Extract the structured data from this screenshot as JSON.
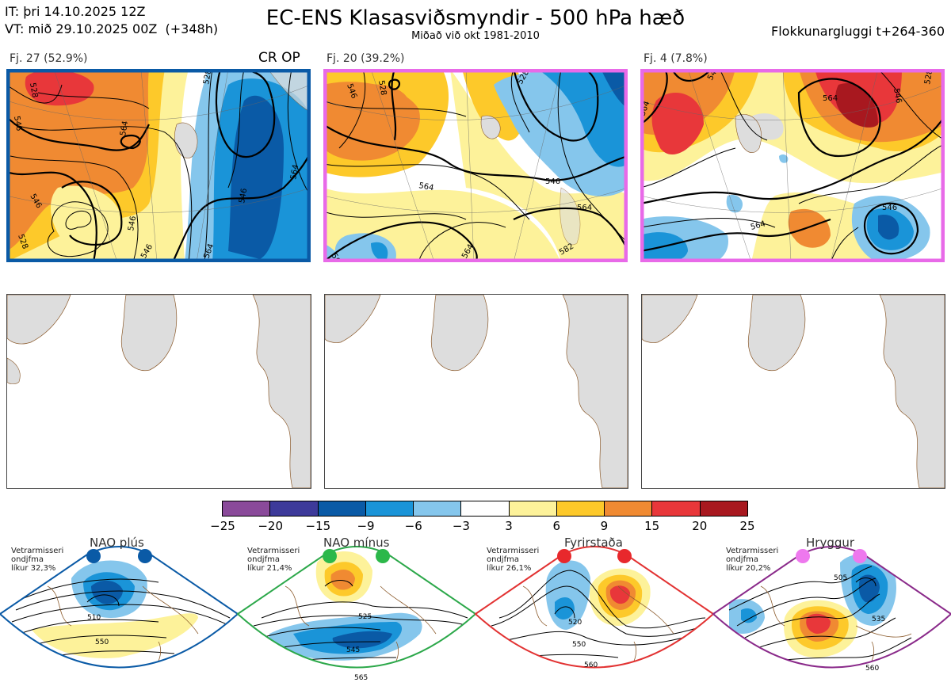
{
  "header": {
    "init_time": "IT: þri 14.10.2025 12Z",
    "valid_time": "VT: mið 29.10.2025 00Z  (+348h)",
    "title": "EC-ENS Klasasviðsmyndir - 500 hPa hæð",
    "subtitle": "Miðað við okt 1981-2010",
    "cluster_window": "Flokkunargluggi t+264-360"
  },
  "clusters": [
    {
      "label": "Fj. 27 (52.9%)",
      "members": 27,
      "percent": 52.9,
      "border_color": "#0a5aa6",
      "badge": "CR OP",
      "contour_labels": [
        "528",
        "546",
        "564",
        "546",
        "528",
        "546",
        "528",
        "546",
        "564",
        "546",
        "564"
      ]
    },
    {
      "label": "Fj. 20 (39.2%)",
      "members": 20,
      "percent": 39.2,
      "border_color": "#e86ae8",
      "badge": "",
      "contour_labels": [
        "546",
        "528",
        "528",
        "546",
        "564",
        "564",
        "546",
        "564",
        "582",
        "564"
      ]
    },
    {
      "label": "Fj. 4 (7.8%)",
      "members": 4,
      "percent": 7.8,
      "border_color": "#e86ae8",
      "badge": "",
      "contour_labels": [
        "546",
        "564",
        "546",
        "528",
        "564",
        "546",
        "564"
      ]
    }
  ],
  "colorbar": {
    "ticks": [
      "−25",
      "−20",
      "−15",
      "−9",
      "−6",
      "−3",
      "3",
      "6",
      "9",
      "15",
      "20",
      "25"
    ],
    "colors": [
      "#8a4a9a",
      "#3d3a9a",
      "#0a5aa6",
      "#1a94d8",
      "#85c6ec",
      "#ffffff",
      "#fdf29a",
      "#fdc92a",
      "#f08a32",
      "#e8373a",
      "#a8181f"
    ]
  },
  "regimes": [
    {
      "name": "NAO plús",
      "text": "Vetrarmisseri\nondjfma\nlíkur 32,3%",
      "border": "#0a5aa6",
      "dot": "#0a5aa6",
      "contour_labels": [
        "510",
        "550"
      ]
    },
    {
      "name": "NAO mínus",
      "text": "Vetrarmisseri\nondjfma\nlíkur 21,4%",
      "border": "#2ca84a",
      "dot": "#2cb84a",
      "contour_labels": [
        "525",
        "545",
        "565"
      ]
    },
    {
      "name": "Fyrirstaða",
      "text": "Vetrarmisseri\nondjfma\nlíkur 26,1%",
      "border": "#e23232",
      "dot": "#e8282c",
      "contour_labels": [
        "520",
        "550",
        "560"
      ]
    },
    {
      "name": "Hryggur",
      "text": "Vetrarmisseri\nondjfma\nlíkur 20,2%",
      "border": "#8a2a8a",
      "dot": "#ee78ee",
      "contour_labels": [
        "505",
        "535",
        "560"
      ]
    }
  ]
}
